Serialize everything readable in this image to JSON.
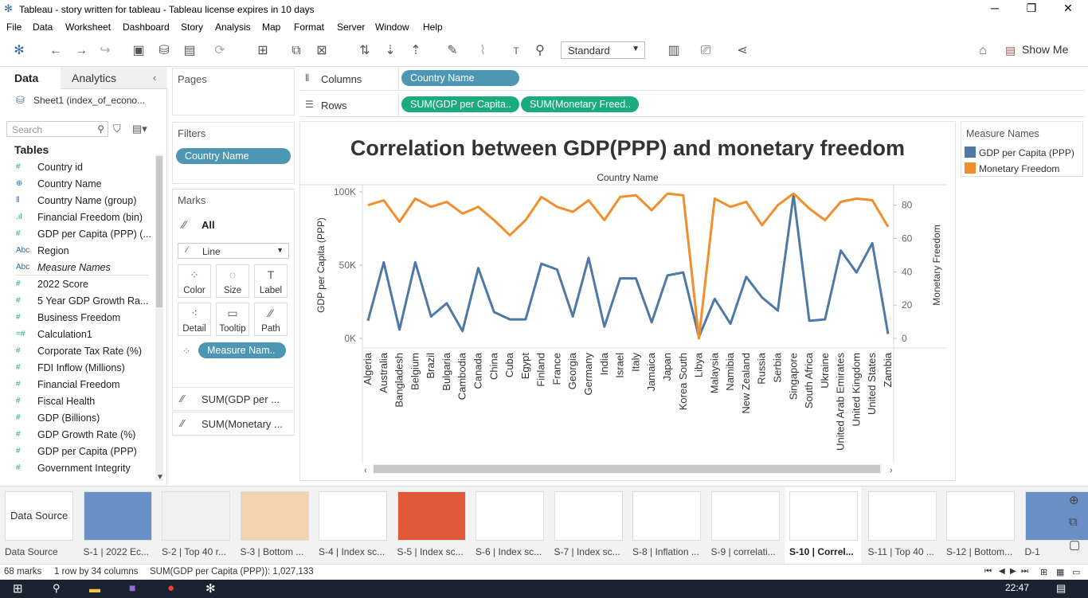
{
  "window": {
    "title": "Tableau - story written for tableau - Tableau license expires in 10 days"
  },
  "menu": [
    "File",
    "Data",
    "Worksheet",
    "Dashboard",
    "Story",
    "Analysis",
    "Map",
    "Format",
    "Server",
    "Window",
    "Help"
  ],
  "toolbar": {
    "fit": "Standard",
    "show_me": "Show Me"
  },
  "data_pane": {
    "tab_data": "Data",
    "tab_analytics": "Analytics",
    "data_source": "Sheet1 (index_of_econo...",
    "search_placeholder": "Search",
    "tables_heading": "Tables",
    "fields": [
      {
        "type": "#",
        "label": "Country id"
      },
      {
        "type": "globe",
        "label": "Country Name"
      },
      {
        "type": "group",
        "label": "Country Name (group)"
      },
      {
        "type": "bin",
        "label": "Financial Freedom (bin)"
      },
      {
        "type": "#",
        "label": "GDP per Capita (PPP) (..."
      },
      {
        "type": "Abc",
        "label": "Region"
      },
      {
        "type": "Abc",
        "label": "Measure Names"
      },
      {
        "type": "#",
        "label": "2022 Score"
      },
      {
        "type": "#",
        "label": "5 Year GDP Growth Ra..."
      },
      {
        "type": "#",
        "label": "Business Freedom"
      },
      {
        "type": "=#",
        "label": "Calculation1"
      },
      {
        "type": "#",
        "label": "Corporate Tax Rate (%)"
      },
      {
        "type": "#",
        "label": "FDI Inflow (Millions)"
      },
      {
        "type": "#",
        "label": "Financial Freedom"
      },
      {
        "type": "#",
        "label": "Fiscal Health"
      },
      {
        "type": "#",
        "label": "GDP (Billions)"
      },
      {
        "type": "#",
        "label": "GDP Growth Rate (%)"
      },
      {
        "type": "#",
        "label": "GDP per Capita (PPP)"
      },
      {
        "type": "#",
        "label": "Government Integrity"
      }
    ]
  },
  "cards": {
    "pages": "Pages",
    "filters": "Filters",
    "filter_pill": "Country Name",
    "marks": "Marks",
    "marks_all": "All",
    "mark_type": "Line",
    "mark_buttons": [
      "Color",
      "Size",
      "Label",
      "Detail",
      "Tooltip",
      "Path"
    ],
    "measure_pill": "Measure Nam..",
    "sum_gdp": "SUM(GDP per ...",
    "sum_monetary": "SUM(Monetary ..."
  },
  "shelves": {
    "columns_label": "Columns",
    "rows_label": "Rows",
    "columns_pill": "Country Name",
    "rows_pill_1": "SUM(GDP per Capita..",
    "rows_pill_2": "SUM(Monetary Freed.."
  },
  "legend": {
    "title": "Measure Names",
    "items": [
      {
        "label": "GDP per Capita (PPP)",
        "color": "#4e79a7"
      },
      {
        "label": "Monetary Freedom",
        "color": "#f28e2b"
      }
    ]
  },
  "chart_data": {
    "type": "line",
    "title": "Correlation between GDP(PPP) and monetary freedom",
    "xlabel": "Country Name",
    "categories": [
      "Algeria",
      "Australia",
      "Bangladesh",
      "Belgium",
      "Brazil",
      "Bulgaria",
      "Cambodia",
      "Canada",
      "China",
      "Cuba",
      "Egypt",
      "Finland",
      "France",
      "Georgia",
      "Germany",
      "India",
      "Israel",
      "Italy",
      "Jamaica",
      "Japan",
      "Korea South",
      "Libya",
      "Malaysia",
      "Namibia",
      "New Zealand",
      "Russia",
      "Serbia",
      "Singapore",
      "South Africa",
      "Ukraine",
      "United Arab Emirates",
      "United Kingdom",
      "United States",
      "Zambia"
    ],
    "series": [
      {
        "name": "GDP per Capita (PPP)",
        "axis": "left",
        "ylabel": "GDP per Capita (PPP)",
        "ylim": [
          0,
          100000
        ],
        "yticks": [
          "0K",
          "50K",
          "100K"
        ],
        "color": "#4e79a7",
        "values": [
          12000,
          52000,
          6000,
          52000,
          15000,
          24000,
          5000,
          48000,
          18000,
          13000,
          13000,
          51000,
          47000,
          15000,
          55000,
          8000,
          41000,
          41000,
          11000,
          43000,
          45000,
          1000,
          27000,
          10000,
          42000,
          28000,
          19000,
          98000,
          12000,
          13000,
          60000,
          45000,
          65000,
          3000
        ]
      },
      {
        "name": "Monetary Freedom",
        "axis": "right",
        "ylabel": "Monetary Freedom",
        "ylim": [
          0,
          88
        ],
        "yticks": [
          "0",
          "20",
          "40",
          "60",
          "80"
        ],
        "color": "#f28e2b",
        "values": [
          80,
          83,
          70,
          84,
          79,
          82,
          75,
          79,
          71,
          62,
          71,
          85,
          79,
          76,
          83,
          71,
          85,
          86,
          77,
          87,
          86,
          0,
          84,
          79,
          82,
          68,
          80,
          87,
          78,
          71,
          82,
          84,
          83,
          67
        ]
      }
    ]
  },
  "stories": [
    {
      "caption": "Data Source"
    },
    {
      "caption": "S-1 | 2022 Ec..."
    },
    {
      "caption": "S-2 | Top 40 r..."
    },
    {
      "caption": "S-3 | Bottom ..."
    },
    {
      "caption": "S-4 | Index sc..."
    },
    {
      "caption": "S-5 | Index sc..."
    },
    {
      "caption": "S-6 | Index sc..."
    },
    {
      "caption": "S-7 | Index sc..."
    },
    {
      "caption": "S-8 | Inflation ..."
    },
    {
      "caption": "S-9 | correlati..."
    },
    {
      "caption": "S-10 | Correl..."
    },
    {
      "caption": "S-11 | Top 40 ..."
    },
    {
      "caption": "S-12 | Bottom..."
    },
    {
      "caption": "D-1"
    }
  ],
  "datasource_tab": "Data Source",
  "status": {
    "marks": "68 marks",
    "rows": "1 row by 34 columns",
    "sum": "SUM(GDP per Capita (PPP)): 1,027,133"
  },
  "taskbar": {
    "clock": "22:47"
  }
}
